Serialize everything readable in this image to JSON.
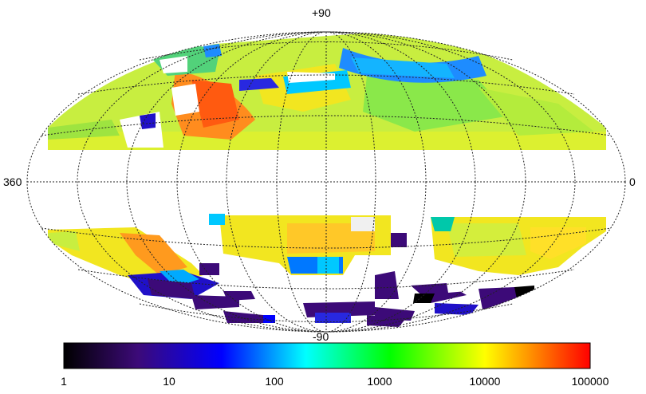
{
  "labels": {
    "top": "+90",
    "bottom": "-90",
    "left": "360",
    "right": "0"
  },
  "colorbar": {
    "ticks": [
      "1",
      "10",
      "100",
      "1000",
      "10000",
      "100000"
    ],
    "scale": "log",
    "colormap": "rainbow (black-purple-blue-cyan-green-yellow-red)",
    "stops": [
      "#000000",
      "#3c0a78",
      "#0000ff",
      "#00ffff",
      "#00ff00",
      "#ffff00",
      "#ff0000"
    ]
  },
  "map": {
    "projection": "Hammer-Aitoff all-sky",
    "grid": "dotted",
    "masked_band": "Galactic plane (white, no coverage)"
  }
}
